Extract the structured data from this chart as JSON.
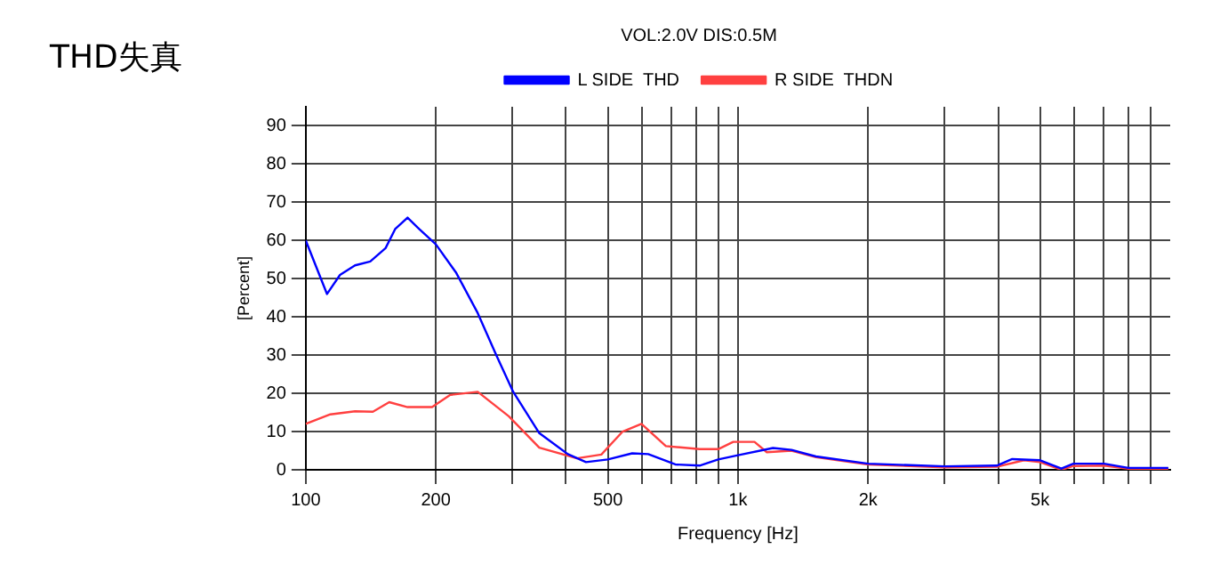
{
  "chart_data": {
    "type": "line",
    "title": "THD失真",
    "subtitle": "VOL:2.0V DIS:0.5M",
    "xlabel": "Frequency [Hz]",
    "ylabel": "[Percent]",
    "log": "x",
    "grid": true,
    "legend": "top",
    "marker": "none",
    "line_style": "solid",
    "xlim": [
      100,
      10000
    ],
    "ylim": [
      0,
      95
    ],
    "xticks": [
      100,
      200,
      {
        "value": 300,
        "label": null
      },
      {
        "value": 400,
        "label": null
      },
      500,
      {
        "value": 600,
        "label": null
      },
      {
        "value": 700,
        "label": null
      },
      {
        "value": 800,
        "label": null
      },
      {
        "value": 900,
        "label": null
      },
      {
        "value": 1000,
        "label": "1k"
      },
      {
        "value": 2000,
        "label": "2k"
      },
      {
        "value": 3000,
        "label": null
      },
      {
        "value": 4000,
        "label": null
      },
      {
        "value": 5000,
        "label": "5k"
      },
      {
        "value": 6000,
        "label": null
      },
      {
        "value": 7000,
        "label": null
      },
      {
        "value": 8000,
        "label": null
      },
      {
        "value": 9000,
        "label": null
      }
    ],
    "yticks": [
      0,
      10,
      20,
      30,
      40,
      50,
      60,
      70,
      80,
      90
    ],
    "series": [
      {
        "name": "L SIDE  THD",
        "color": "#0000ff",
        "x": [
          100,
          112,
          120,
          130,
          141,
          153,
          161,
          172,
          183,
          200,
          223,
          250,
          276,
          302,
          347,
          404,
          445,
          500,
          569,
          620,
          716,
          815,
          900,
          1000,
          1205,
          1330,
          1515,
          2000,
          3010,
          3970,
          4310,
          5000,
          5600,
          5970,
          7030,
          8000,
          9900
        ],
        "values": [
          60,
          46,
          51,
          53.5,
          54.5,
          58,
          63,
          66,
          63,
          59,
          51.5,
          41,
          30,
          20.4,
          9.6,
          4.1,
          2,
          2.7,
          4.3,
          4.1,
          1.4,
          1.1,
          2.7,
          3.8,
          5.7,
          5.2,
          3.5,
          1.6,
          0.9,
          1.1,
          2.8,
          2.5,
          0.3,
          1.6,
          1.6,
          0.5,
          0.5
        ]
      },
      {
        "name": "R SIDE  THDN",
        "color": "#ff4040",
        "x": [
          100,
          114,
          130,
          143,
          156,
          172,
          196,
          216,
          250,
          295,
          347,
          424,
          483,
          541,
          598,
          681,
          815,
          900,
          975,
          1092,
          1166,
          1330,
          1515,
          2000,
          3010,
          3970,
          4590,
          5000,
          5600,
          5970,
          7030,
          8000,
          9900
        ],
        "values": [
          12,
          14.5,
          15.3,
          15.2,
          17.7,
          16.4,
          16.4,
          19.6,
          20.4,
          14,
          5.8,
          3,
          4,
          10,
          12,
          6.2,
          5.4,
          5.4,
          7.3,
          7.3,
          4.6,
          5,
          3.3,
          1.4,
          0.6,
          0.8,
          2.5,
          2,
          0,
          1,
          1.1,
          0.3,
          0.3
        ]
      }
    ]
  }
}
